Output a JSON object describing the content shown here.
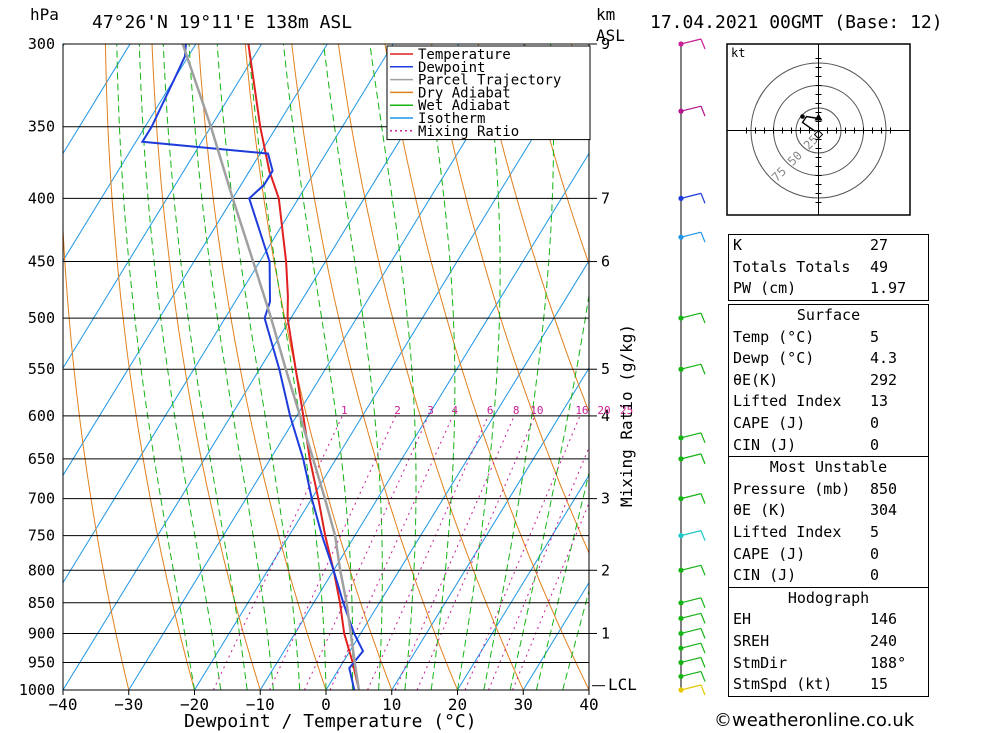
{
  "header": {
    "y_unit": "hPa",
    "location": "47°26'N  19°11'E  138m  ASL",
    "km_unit": "km",
    "km_unit2": "ASL",
    "datetime": "17.04.2021  00GMT  (Base: 12)"
  },
  "chart_data": {
    "type": "line",
    "title": "47°26'N 19°11'E 138m ASL",
    "xlabel": "Dewpoint / Temperature (°C)",
    "ylabel": "hPa",
    "xlim": [
      -40,
      40
    ],
    "ylim": [
      1000,
      300
    ],
    "x_ticks": [
      -40,
      -30,
      -20,
      -10,
      0,
      10,
      20,
      30,
      40
    ],
    "pressure_levels": [
      300,
      350,
      400,
      450,
      500,
      550,
      600,
      650,
      700,
      750,
      800,
      850,
      900,
      950,
      1000
    ],
    "skew_deg_per_log_p": 50.0,
    "series": [
      {
        "name": "Temperature",
        "color": "#e02020",
        "points": [
          [
            1000,
            5
          ],
          [
            950,
            1.5
          ],
          [
            900,
            -2.5
          ],
          [
            850,
            -6
          ],
          [
            800,
            -10
          ],
          [
            750,
            -14.5
          ],
          [
            700,
            -19
          ],
          [
            650,
            -24
          ],
          [
            600,
            -29
          ],
          [
            550,
            -34.5
          ],
          [
            500,
            -40.5
          ],
          [
            480,
            -42.5
          ],
          [
            450,
            -46
          ],
          [
            400,
            -53
          ],
          [
            380,
            -57
          ],
          [
            350,
            -62.5
          ],
          [
            300,
            -72
          ]
        ]
      },
      {
        "name": "Dewpoint",
        "color": "#1e3cdc",
        "points": [
          [
            1000,
            4.3
          ],
          [
            960,
            1.5
          ],
          [
            930,
            2
          ],
          [
            900,
            -1
          ],
          [
            850,
            -5.5
          ],
          [
            800,
            -10
          ],
          [
            750,
            -15
          ],
          [
            700,
            -20
          ],
          [
            650,
            -25
          ],
          [
            600,
            -31
          ],
          [
            550,
            -37
          ],
          [
            500,
            -44
          ],
          [
            485,
            -44.7
          ],
          [
            450,
            -48.5
          ],
          [
            400,
            -57.5
          ],
          [
            390,
            -56.5
          ],
          [
            380,
            -56.5
          ],
          [
            368,
            -58.8
          ],
          [
            360,
            -79
          ],
          [
            350,
            -79
          ],
          [
            320,
            -80
          ],
          [
            307,
            -80.5
          ],
          [
            300,
            -81.5
          ]
        ]
      },
      {
        "name": "Parcel Trajectory",
        "color": "#a0a0a0",
        "points": [
          [
            1000,
            5
          ],
          [
            950,
            1.8
          ],
          [
            900,
            -1.5
          ],
          [
            850,
            -5
          ],
          [
            800,
            -9
          ],
          [
            750,
            -13
          ],
          [
            700,
            -18
          ],
          [
            650,
            -23.5
          ],
          [
            600,
            -29.5
          ],
          [
            550,
            -36
          ],
          [
            500,
            -43
          ],
          [
            450,
            -51
          ],
          [
            400,
            -60
          ],
          [
            350,
            -70
          ],
          [
            300,
            -82
          ]
        ]
      }
    ],
    "legend": [
      "Temperature",
      "Dewpoint",
      "Parcel Trajectory",
      "Dry Adiabat",
      "Wet Adiabat",
      "Isotherm",
      "Mixing Ratio"
    ],
    "legend_colors": [
      "#e02020",
      "#1e3cdc",
      "#a0a0a0",
      "#e0801e",
      "#14b414",
      "#1e96e6",
      "#c81e96"
    ],
    "legend_position": "top-right",
    "mixing_ratio_labels": [
      "1",
      "2",
      "3",
      "4",
      "6",
      "8",
      "10",
      "16",
      "20",
      "25"
    ],
    "mixing_ratio_values": [
      1,
      2,
      3,
      4,
      6,
      8,
      10,
      16,
      20,
      25
    ],
    "mixing_ratio_axis_label": "Mixing Ratio (g/kg)",
    "km_labels": [
      {
        "p": 300,
        "label": "9"
      },
      {
        "p": 400,
        "label": "7"
      },
      {
        "p": 450,
        "label": "6"
      },
      {
        "p": 550,
        "label": "5"
      },
      {
        "p": 600,
        "label": "4"
      },
      {
        "p": 700,
        "label": "3"
      },
      {
        "p": 800,
        "label": "2"
      },
      {
        "p": 900,
        "label": "1"
      }
    ],
    "lcl_label": "LCL",
    "lcl_pressure": 992,
    "wind_profile_markers": [
      {
        "p": 1000,
        "color": "#e6c800"
      },
      {
        "p": 975,
        "color": "#14b414"
      },
      {
        "p": 950,
        "color": "#14b414"
      },
      {
        "p": 925,
        "color": "#14b414"
      },
      {
        "p": 900,
        "color": "#14b414"
      },
      {
        "p": 875,
        "color": "#14b414"
      },
      {
        "p": 850,
        "color": "#14b414"
      },
      {
        "p": 800,
        "color": "#14b414"
      },
      {
        "p": 750,
        "color": "#1ec8c8"
      },
      {
        "p": 700,
        "color": "#14b414"
      },
      {
        "p": 650,
        "color": "#14b414"
      },
      {
        "p": 625,
        "color": "#14b414"
      },
      {
        "p": 550,
        "color": "#14b414"
      },
      {
        "p": 500,
        "color": "#14b414"
      },
      {
        "p": 430,
        "color": "#1e96e6"
      },
      {
        "p": 400,
        "color": "#1e3cdc"
      },
      {
        "p": 340,
        "color": "#b4148c"
      },
      {
        "p": 300,
        "color": "#c81e96"
      }
    ],
    "hodograph": {
      "unit": "kt",
      "ring_labels": [
        "25",
        "50",
        "75"
      ],
      "ring_values": [
        25,
        50,
        75
      ]
    }
  },
  "indices": {
    "top": [
      {
        "label": "K",
        "value": "27"
      },
      {
        "label": "Totals Totals",
        "value": "49"
      },
      {
        "label": "PW (cm)",
        "value": "1.97"
      }
    ],
    "surface_title": "Surface",
    "surface": [
      {
        "label": "Temp (°C)",
        "value": "5"
      },
      {
        "label": "Dewp (°C)",
        "value": "4.3"
      },
      {
        "label": "θE(K)",
        "value": "292"
      },
      {
        "label": "Lifted Index",
        "value": "13"
      },
      {
        "label": "CAPE (J)",
        "value": "0"
      },
      {
        "label": "CIN (J)",
        "value": "0"
      }
    ],
    "mu_title": "Most Unstable",
    "mu": [
      {
        "label": "Pressure (mb)",
        "value": "850"
      },
      {
        "label": "θE (K)",
        "value": "304"
      },
      {
        "label": "Lifted Index",
        "value": "5"
      },
      {
        "label": "CAPE (J)",
        "value": "0"
      },
      {
        "label": "CIN (J)",
        "value": "0"
      }
    ],
    "hodo_title": "Hodograph",
    "hodo": [
      {
        "label": "EH",
        "value": "146"
      },
      {
        "label": "SREH",
        "value": "240"
      },
      {
        "label": "StmDir",
        "value": "188°"
      },
      {
        "label": "StmSpd (kt)",
        "value": "15"
      }
    ]
  },
  "credit": "©weatheronline.co.uk"
}
